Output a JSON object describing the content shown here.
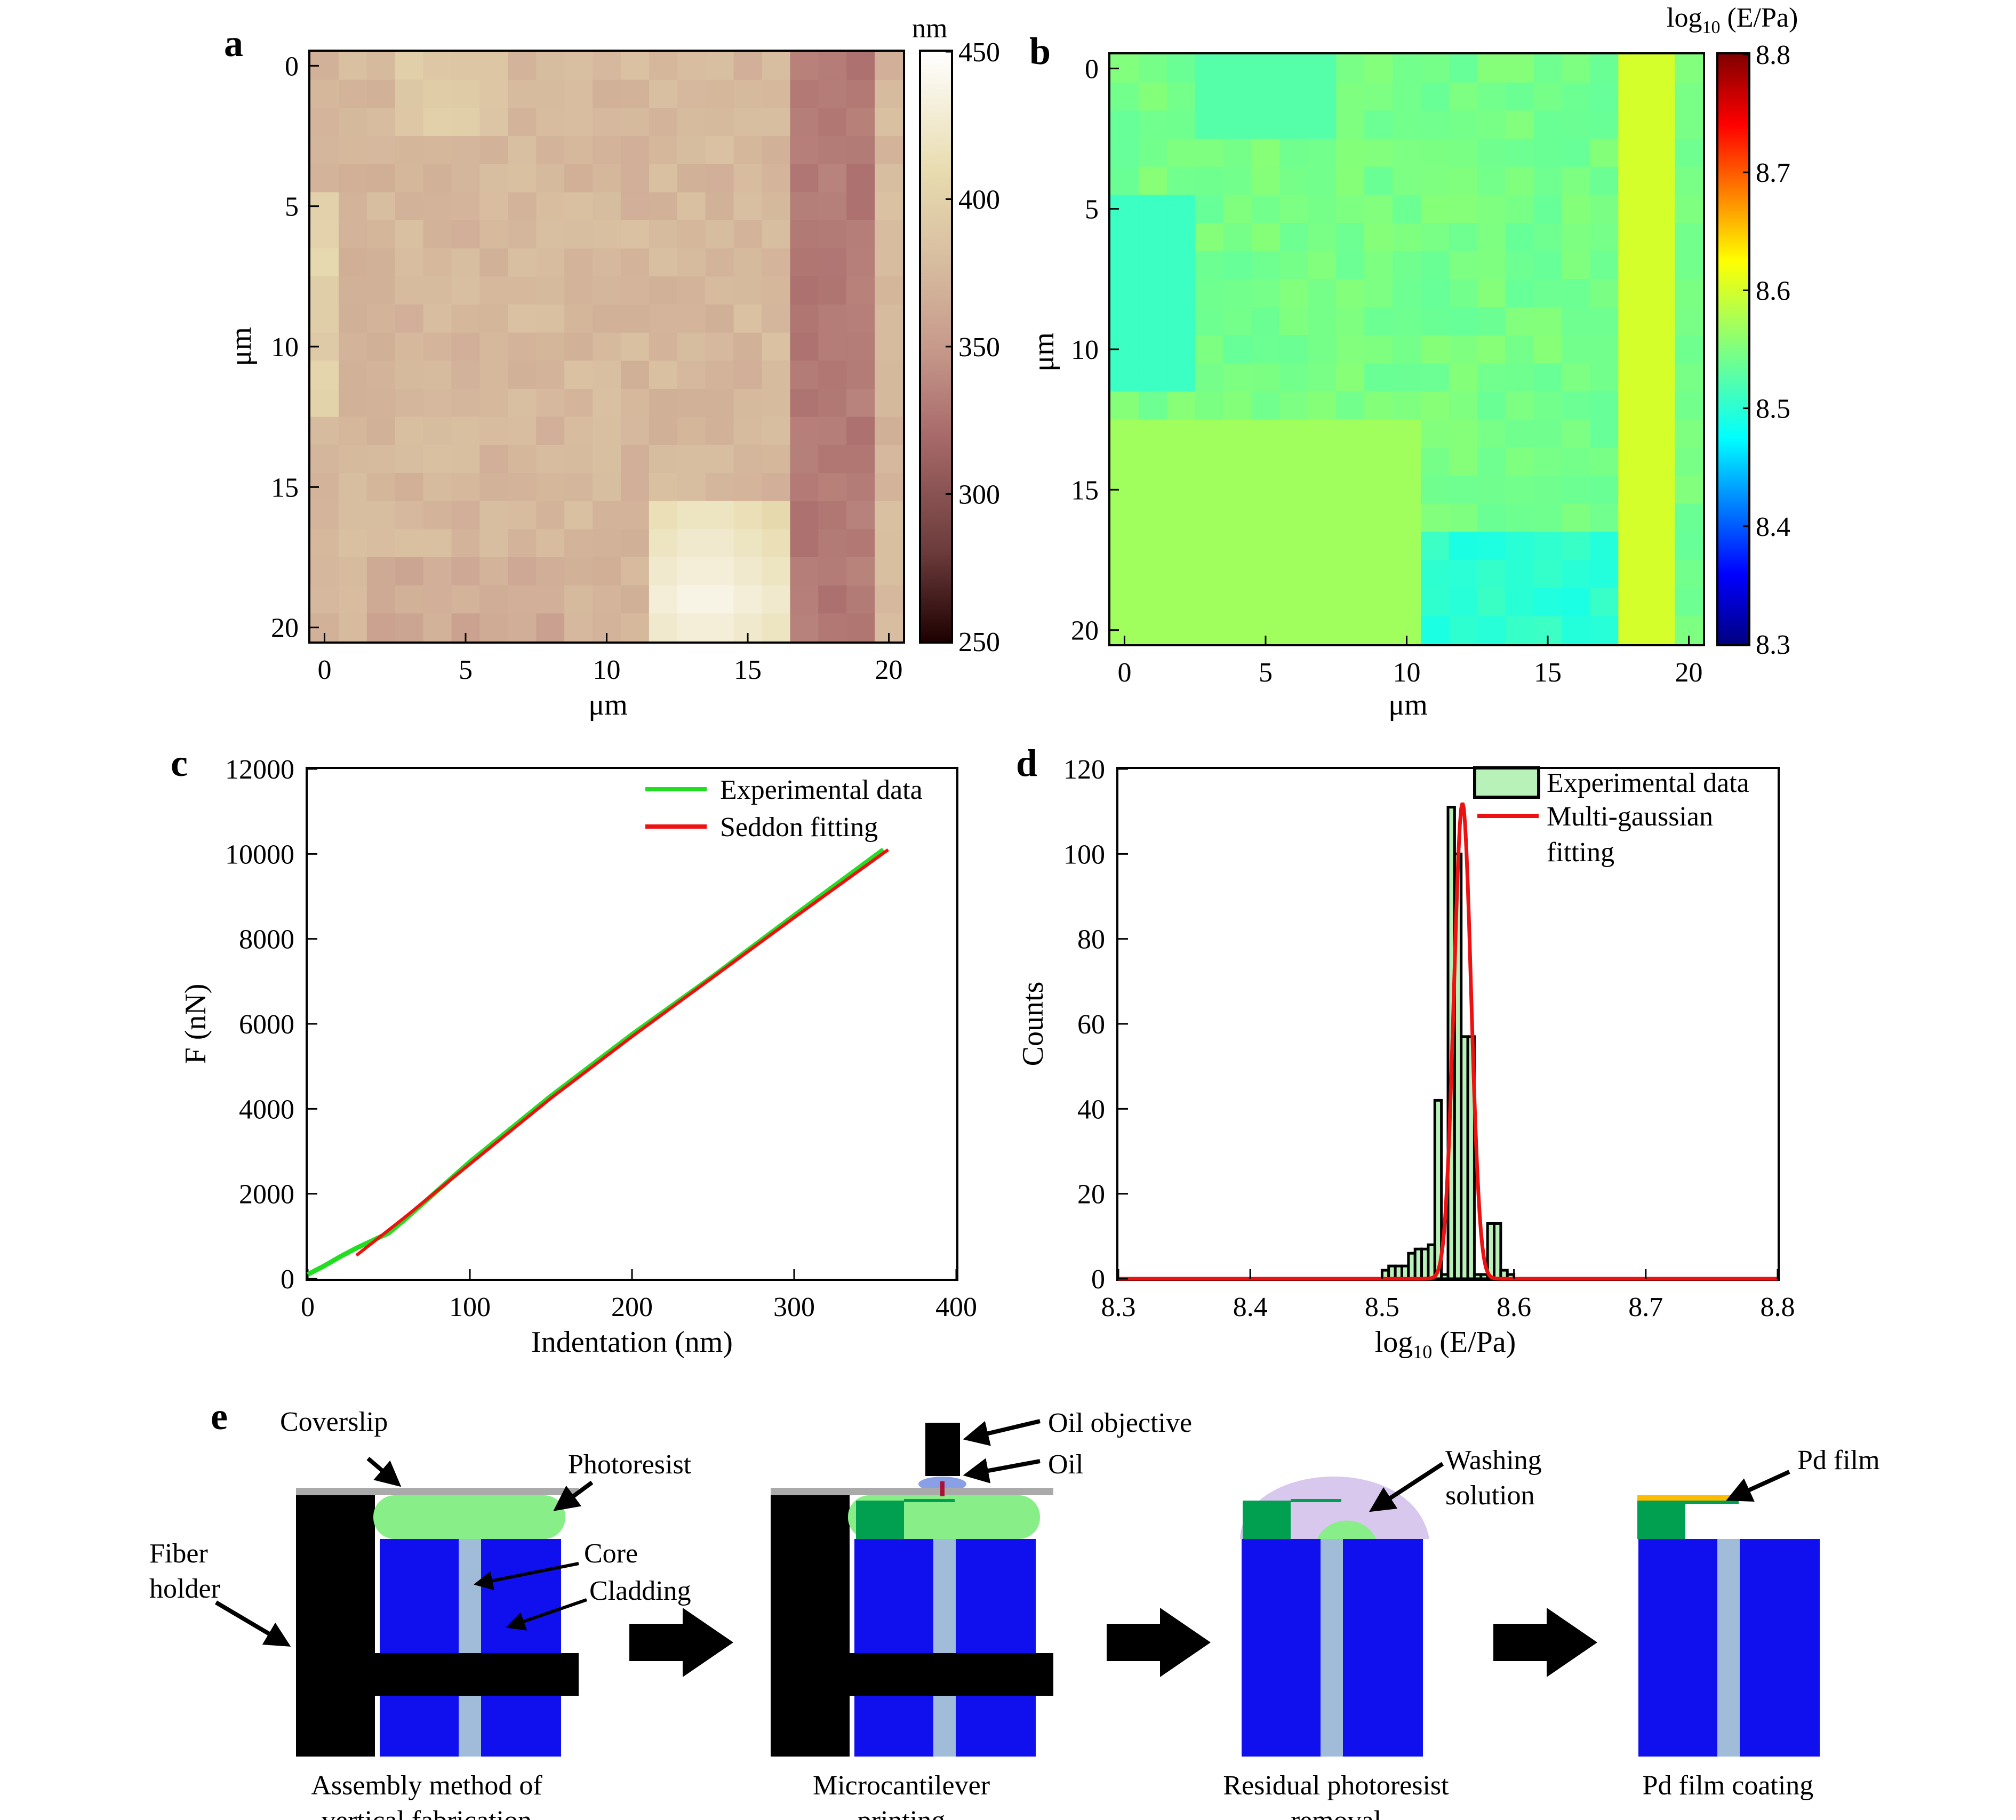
{
  "panels": {
    "a": "a",
    "b": "b",
    "c": "c",
    "d": "d",
    "e": "e"
  },
  "colors": {
    "exp_green": "#22dd22",
    "fit_red": "#ee1111",
    "hist_fill": "#b8f2b8",
    "core_blue": "#1010ee",
    "core_light": "#a0bcd8",
    "photoresist": "#88ee88",
    "cantilever": "#00a050",
    "washing": "#d9c8ee",
    "pd_film": "#ffbb00",
    "coverslip": "#aaaaaa"
  },
  "chart_data": [
    {
      "panel": "a",
      "type": "heatmap",
      "xlabel": "μm",
      "ylabel": "μm",
      "x_ticks": [
        "0",
        "5",
        "10",
        "15",
        "20"
      ],
      "y_ticks": [
        "0",
        "5",
        "10",
        "15",
        "20"
      ],
      "colorbar": {
        "unit": "nm",
        "range": [
          250,
          450
        ],
        "ticks": [
          "450",
          "400",
          "350",
          "300",
          "250"
        ],
        "colormap": "pink"
      },
      "grid_size": [
        21,
        21
      ],
      "description_values": {
        "typical": 375,
        "bright_region": {
          "x_range_um": [
            12,
            16
          ],
          "y_range_um": [
            16,
            20
          ],
          "value": 440
        },
        "dark_column": {
          "x_range_um": [
            17,
            19
          ],
          "value": 330
        }
      }
    },
    {
      "panel": "b",
      "type": "heatmap",
      "xlabel": "μm",
      "ylabel": "μm",
      "x_ticks": [
        "0",
        "5",
        "10",
        "15",
        "20"
      ],
      "y_ticks": [
        "0",
        "5",
        "10",
        "15",
        "20"
      ],
      "colorbar": {
        "unit": "log10 (E/Pa)",
        "unit_main": "log",
        "unit_sub": "10",
        "unit_rest": " (E/Pa)",
        "range": [
          8.3,
          8.8
        ],
        "ticks": [
          "8.8",
          "8.7",
          "8.6",
          "8.5",
          "8.4",
          "8.3"
        ],
        "colormap": "jet"
      },
      "grid_size": [
        21,
        21
      ],
      "description_values": {
        "typical": 8.545,
        "right_column": {
          "x_range_um": [
            18,
            19
          ],
          "value": 8.6
        },
        "low_region": {
          "x_range_um": [
            11,
            17
          ],
          "y_range_um": [
            17,
            20
          ],
          "value": 8.5
        }
      }
    },
    {
      "panel": "c",
      "type": "line",
      "xlabel": "Indentation (nm)",
      "ylabel": "F (nN)",
      "xlim": [
        0,
        400
      ],
      "ylim": [
        0,
        12000
      ],
      "x_ticks": [
        "0",
        "100",
        "200",
        "300",
        "400"
      ],
      "y_ticks": [
        "0",
        "2000",
        "4000",
        "6000",
        "8000",
        "10000",
        "12000"
      ],
      "series": [
        {
          "name": "Experimental data",
          "color": "#22dd22",
          "x": [
            0,
            10,
            20,
            30,
            40,
            50,
            60,
            100,
            150,
            200,
            250,
            300,
            355
          ],
          "y": [
            100,
            300,
            520,
            720,
            900,
            1080,
            1400,
            2750,
            4300,
            5750,
            7120,
            8550,
            10100
          ]
        },
        {
          "name": "Seddon fitting",
          "color": "#ee1111",
          "x": [
            30,
            60,
            100,
            150,
            200,
            250,
            300,
            358
          ],
          "y": [
            550,
            1450,
            2700,
            4250,
            5700,
            7100,
            8500,
            10100
          ]
        }
      ]
    },
    {
      "panel": "d",
      "type": "bar",
      "xlabel": "log10 (E/Pa)",
      "xlabel_main": "log",
      "xlabel_sub": "10",
      "xlabel_rest": " (E/Pa)",
      "ylabel": "Counts",
      "xlim": [
        8.3,
        8.8
      ],
      "ylim": [
        0,
        120
      ],
      "x_ticks": [
        "8.3",
        "8.4",
        "8.5",
        "8.6",
        "8.7",
        "8.8"
      ],
      "y_ticks": [
        "0",
        "20",
        "40",
        "60",
        "80",
        "100",
        "120"
      ],
      "bin_width": 0.005,
      "series": [
        {
          "name": "Experimental data",
          "type": "bar",
          "bin_centers": [
            8.5025,
            8.5075,
            8.5125,
            8.5175,
            8.5225,
            8.5275,
            8.5325,
            8.5375,
            8.5425,
            8.5475,
            8.5525,
            8.5575,
            8.5625,
            8.5675,
            8.5725,
            8.5775,
            8.5825,
            8.5875,
            8.5925,
            8.5975,
            8.6025
          ],
          "counts": [
            2,
            3,
            3,
            3,
            6,
            7,
            7,
            8,
            42,
            1,
            111,
            100,
            57,
            57,
            1,
            1,
            13,
            13,
            2,
            1,
            0
          ]
        },
        {
          "name": "Multi-gaussian fitting",
          "type": "line",
          "color": "#ee1111",
          "gaussian": {
            "center": 8.561,
            "sigma": 0.0065,
            "amplitude": 112
          }
        }
      ],
      "legend_lines": [
        "Experimental data",
        "Multi-gaussian",
        "fitting"
      ]
    }
  ],
  "schematic": {
    "arrows_count": 3,
    "steps": [
      {
        "caption_line1": "Assembly method of",
        "caption_line2": "vertical fabrication",
        "labels": {
          "coverslip": "Coverslip",
          "photoresist": "Photoresist",
          "fiber_holder_1": "Fiber",
          "fiber_holder_2": "holder",
          "core": "Core",
          "cladding": "Cladding"
        }
      },
      {
        "caption_line1": "Microcantilever",
        "caption_line2": "printing",
        "labels": {
          "objective": "Oil objective",
          "oil": "Oil"
        }
      },
      {
        "caption_line1": "Residual photoresist",
        "caption_line2": "removal",
        "labels": {
          "washing_1": "Washing",
          "washing_2": "solution"
        }
      },
      {
        "caption_line1": "Pd film coating",
        "caption_line2": "",
        "labels": {
          "pd": "Pd film"
        }
      }
    ]
  }
}
